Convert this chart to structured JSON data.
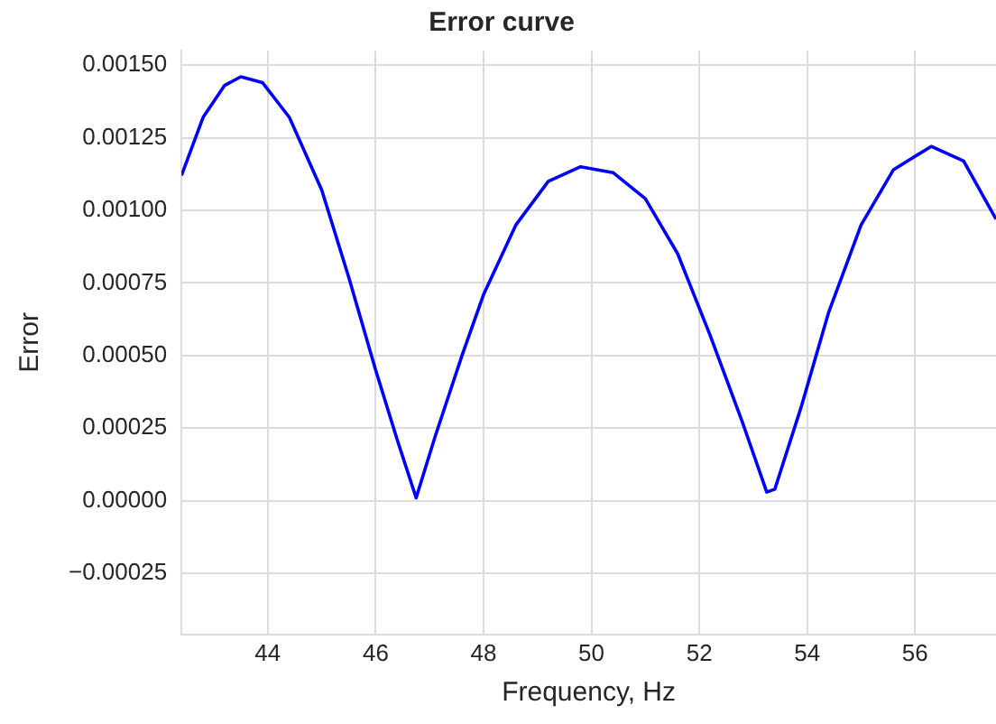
{
  "chart_data": {
    "type": "line",
    "title": "Error curve",
    "xlabel": "Frequency, Hz",
    "ylabel": "Error",
    "x": [
      42.4,
      42.8,
      43.2,
      43.5,
      43.9,
      44.4,
      45.0,
      45.5,
      46.0,
      46.4,
      46.75,
      47.1,
      47.6,
      48.0,
      48.6,
      49.2,
      49.8,
      50.4,
      51.0,
      51.6,
      52.2,
      52.8,
      53.25,
      53.4,
      53.9,
      54.4,
      55.0,
      55.6,
      56.3,
      56.9,
      57.5
    ],
    "series": [
      {
        "color": "#0000ff",
        "values": [
          0.00112,
          0.00132,
          0.00143,
          0.00146,
          0.00144,
          0.00132,
          0.00107,
          0.00077,
          0.00045,
          0.00021,
          1e-05,
          0.00022,
          0.0005,
          0.00071,
          0.00095,
          0.0011,
          0.00115,
          0.00113,
          0.00104,
          0.00085,
          0.00057,
          0.00027,
          3e-05,
          4e-05,
          0.00033,
          0.00065,
          0.00095,
          0.00114,
          0.00122,
          0.00117,
          0.00097
        ]
      }
    ],
    "xlim": [
      42.4,
      57.5
    ],
    "xticks": [
      44,
      46,
      48,
      50,
      52,
      54,
      56
    ],
    "ylim": [
      -0.00046,
      0.00155
    ],
    "yticks": [
      {
        "value": -0.00025,
        "label": "−0.00025"
      },
      {
        "value": 0,
        "label": "0.00000"
      },
      {
        "value": 0.00025,
        "label": "0.00025"
      },
      {
        "value": 0.0005,
        "label": "0.00050"
      },
      {
        "value": 0.00075,
        "label": "0.00075"
      },
      {
        "value": 0.001,
        "label": "0.00100"
      },
      {
        "value": 0.00125,
        "label": "0.00125"
      },
      {
        "value": 0.0015,
        "label": "0.00150"
      }
    ],
    "grid": true,
    "legend": false,
    "marker": "none",
    "line_style": "solid"
  }
}
